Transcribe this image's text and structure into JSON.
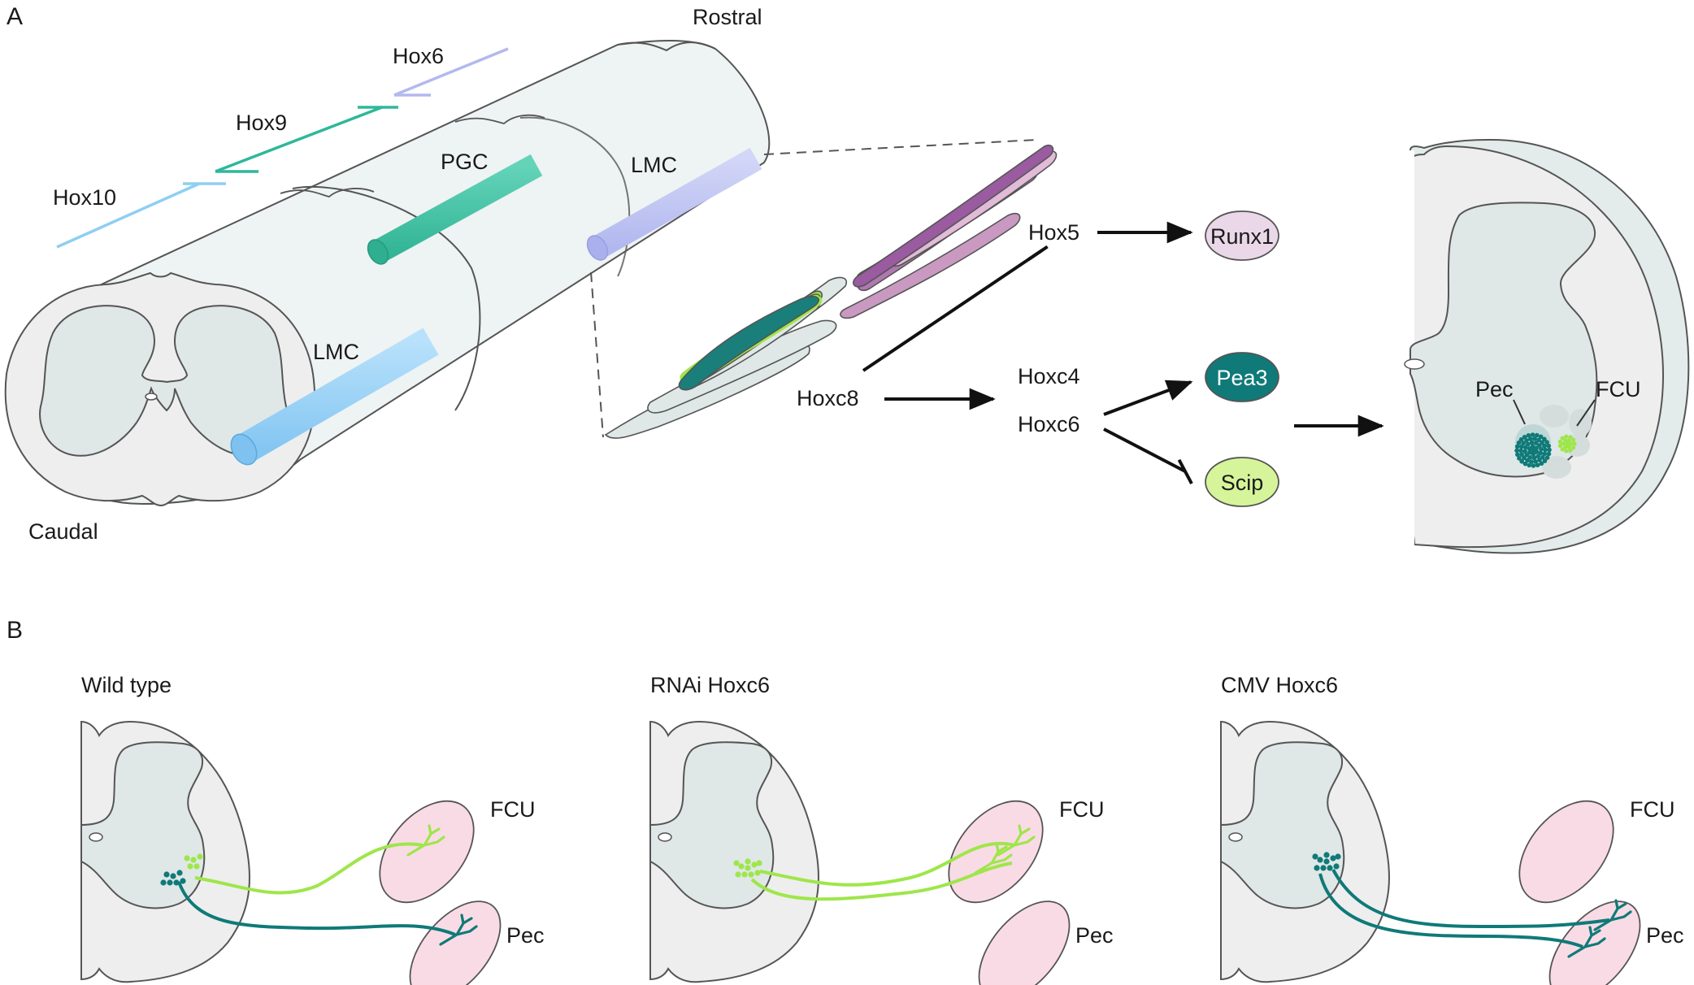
{
  "panels": {
    "a": "A",
    "b": "B"
  },
  "panel_a": {
    "rostral": "Rostral",
    "caudal": "Caudal",
    "hox_genes": [
      "Hox10",
      "Hox9",
      "Hox6"
    ],
    "columns": [
      "PGC",
      "LMC",
      "LMC"
    ],
    "regulation": {
      "hox5": "Hox5",
      "runx1": "Runx1",
      "hoxc8": "Hoxc8",
      "hoxc4": "Hoxc4",
      "hoxc6": "Hoxc6",
      "pea3": "Pea3",
      "scip": "Scip"
    },
    "pools": {
      "pec": "Pec",
      "fcu": "FCU"
    }
  },
  "panel_b": {
    "conditions": [
      {
        "title": "Wild type",
        "fcu": "FCU",
        "pec": "Pec"
      },
      {
        "title": "RNAi Hoxc6",
        "fcu": "FCU",
        "pec": "Pec"
      },
      {
        "title": "CMV Hoxc6",
        "fcu": "FCU",
        "pec": "Pec"
      }
    ]
  },
  "colors": {
    "hox10": "#8ecff2",
    "hox9": "#2eb89a",
    "hox6": "#b3b8ef",
    "pec_teal": "#0f7a78",
    "fcu_green": "#9ee64a",
    "runx1": "#ead8e8",
    "pea3": "#0f7a78",
    "scip": "#d6f49a",
    "lmc_blue": "#9fd4f7",
    "pgc_teal": "#4cc9ac",
    "muscle_pink": "#f9dbe6"
  }
}
